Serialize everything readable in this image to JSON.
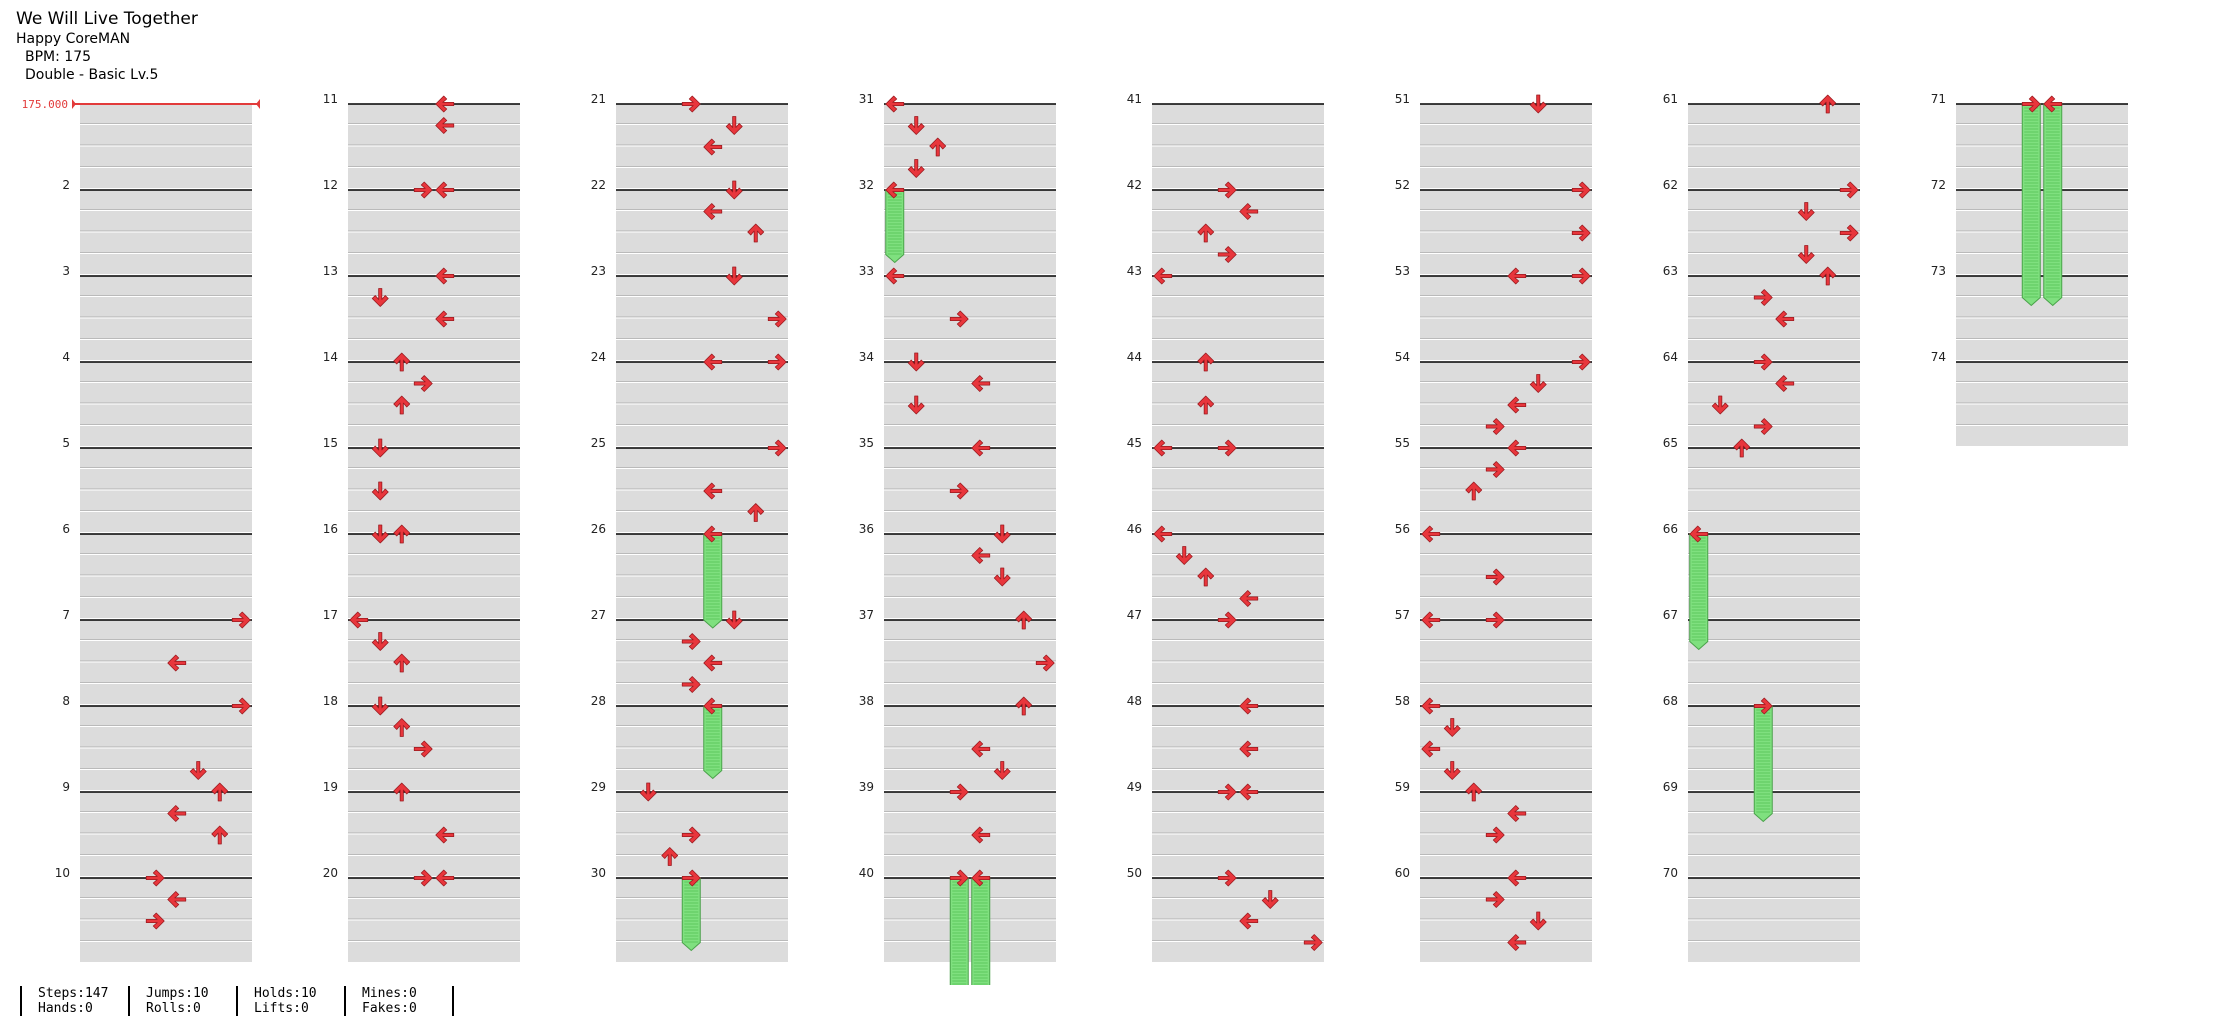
{
  "song": {
    "title": "We Will Live Together",
    "artist": "Happy CoreMAN",
    "bpm_label": "BPM: 175",
    "difficulty": "Double - Basic Lv.5",
    "initial_bpm_marker": "175.000"
  },
  "stats": [
    {
      "top": "Steps:147",
      "bottom": "Hands:0"
    },
    {
      "top": "Jumps:10",
      "bottom": "Rolls:0"
    },
    {
      "top": "Holds:10",
      "bottom": "Lifts:0"
    },
    {
      "top": "Mines:0",
      "bottom": "Fakes:0"
    }
  ],
  "arrow_directions": [
    "left",
    "down",
    "up",
    "right",
    "left",
    "down",
    "up",
    "right"
  ],
  "colors": {
    "arrow": "#e8363c",
    "hold": "#7fe07f",
    "lane_fill": "#dcdcdc",
    "bpm_marker": "#e23b3b"
  },
  "chart_data": {
    "type": "table",
    "description_fields": [
      "measure",
      "beat",
      "lane"
    ],
    "measure_count": 74,
    "lanes": 8,
    "beats_per_measure": 4,
    "notes": [
      [
        7,
        0,
        7
      ],
      [
        7,
        2,
        4
      ],
      [
        8,
        0,
        7
      ],
      [
        8,
        3,
        5
      ],
      [
        9,
        0,
        6
      ],
      [
        9,
        1,
        4
      ],
      [
        9,
        2,
        6
      ],
      [
        10,
        0,
        3
      ],
      [
        10,
        1,
        4
      ],
      [
        10,
        2,
        3
      ],
      [
        11,
        0,
        4
      ],
      [
        11,
        1,
        4
      ],
      [
        12,
        0,
        3
      ],
      [
        12,
        0,
        4
      ],
      [
        13,
        0,
        4
      ],
      [
        13,
        1,
        1
      ],
      [
        13,
        2,
        4
      ],
      [
        14,
        0,
        2
      ],
      [
        14,
        1,
        3
      ],
      [
        14,
        2,
        2
      ],
      [
        15,
        0,
        1
      ],
      [
        15,
        2,
        1
      ],
      [
        16,
        0,
        1
      ],
      [
        16,
        0,
        2
      ],
      [
        17,
        0,
        0
      ],
      [
        17,
        1,
        1
      ],
      [
        17,
        2,
        2
      ],
      [
        18,
        0,
        1
      ],
      [
        18,
        1,
        2
      ],
      [
        18,
        2,
        3
      ],
      [
        19,
        0,
        2
      ],
      [
        19,
        2,
        4
      ],
      [
        20,
        0,
        3
      ],
      [
        20,
        0,
        4
      ],
      [
        21,
        0,
        3
      ],
      [
        21,
        1,
        5
      ],
      [
        21,
        2,
        4
      ],
      [
        22,
        0,
        5
      ],
      [
        22,
        1,
        4
      ],
      [
        22,
        2,
        6
      ],
      [
        23,
        0,
        5
      ],
      [
        23,
        2,
        7
      ],
      [
        24,
        0,
        4
      ],
      [
        24,
        0,
        7
      ],
      [
        25,
        0,
        7
      ],
      [
        25,
        2,
        4
      ],
      [
        25,
        3,
        6
      ],
      [
        26,
        0,
        4
      ],
      [
        27,
        0,
        5
      ],
      [
        27,
        1,
        3
      ],
      [
        27,
        2,
        4
      ],
      [
        27,
        3,
        3
      ],
      [
        28,
        0,
        4
      ],
      [
        29,
        0,
        1
      ],
      [
        29,
        2,
        3
      ],
      [
        29,
        3,
        2
      ],
      [
        30,
        0,
        3
      ],
      [
        31,
        0,
        0
      ],
      [
        31,
        1,
        1
      ],
      [
        31,
        2,
        2
      ],
      [
        31,
        3,
        1
      ],
      [
        32,
        0,
        0
      ],
      [
        33,
        0,
        0
      ],
      [
        33,
        2,
        3
      ],
      [
        34,
        0,
        1
      ],
      [
        34,
        1,
        4
      ],
      [
        34,
        2,
        1
      ],
      [
        35,
        0,
        4
      ],
      [
        35,
        2,
        3
      ],
      [
        36,
        0,
        5
      ],
      [
        36,
        1,
        4
      ],
      [
        36,
        2,
        5
      ],
      [
        37,
        0,
        6
      ],
      [
        37,
        2,
        7
      ],
      [
        38,
        0,
        6
      ],
      [
        38,
        3,
        5
      ],
      [
        38,
        2,
        4
      ],
      [
        39,
        0,
        3
      ],
      [
        39,
        2,
        4
      ],
      [
        40,
        0,
        3
      ],
      [
        40,
        0,
        4
      ],
      [
        42,
        0,
        3
      ],
      [
        42,
        1,
        4
      ],
      [
        42,
        2,
        2
      ],
      [
        42,
        3,
        3
      ],
      [
        43,
        0,
        0
      ],
      [
        44,
        0,
        2
      ],
      [
        44,
        2,
        2
      ],
      [
        45,
        0,
        0
      ],
      [
        45,
        0,
        3
      ],
      [
        46,
        0,
        0
      ],
      [
        46,
        1,
        1
      ],
      [
        46,
        2,
        2
      ],
      [
        46,
        3,
        4
      ],
      [
        47,
        0,
        3
      ],
      [
        48,
        0,
        4
      ],
      [
        48,
        2,
        4
      ],
      [
        49,
        0,
        3
      ],
      [
        49,
        0,
        4
      ],
      [
        50,
        0,
        3
      ],
      [
        50,
        1,
        5
      ],
      [
        50,
        2,
        4
      ],
      [
        50,
        3,
        7
      ],
      [
        51,
        0,
        5
      ],
      [
        52,
        0,
        7
      ],
      [
        52,
        2,
        7
      ],
      [
        53,
        0,
        4
      ],
      [
        53,
        0,
        7
      ],
      [
        54,
        0,
        7
      ],
      [
        54,
        1,
        5
      ],
      [
        54,
        2,
        4
      ],
      [
        54,
        3,
        3
      ],
      [
        55,
        0,
        4
      ],
      [
        55,
        1,
        3
      ],
      [
        55,
        2,
        2
      ],
      [
        56,
        0,
        0
      ],
      [
        56,
        2,
        3
      ],
      [
        57,
        0,
        0
      ],
      [
        57,
        0,
        3
      ],
      [
        58,
        0,
        0
      ],
      [
        58,
        1,
        1
      ],
      [
        58,
        2,
        0
      ],
      [
        58,
        3,
        1
      ],
      [
        59,
        0,
        2
      ],
      [
        59,
        1,
        4
      ],
      [
        59,
        2,
        3
      ],
      [
        60,
        0,
        4
      ],
      [
        60,
        1,
        3
      ],
      [
        60,
        2,
        5
      ],
      [
        60,
        3,
        4
      ],
      [
        61,
        0,
        6
      ],
      [
        62,
        0,
        7
      ],
      [
        62,
        1,
        5
      ],
      [
        62,
        2,
        7
      ],
      [
        62,
        3,
        5
      ],
      [
        63,
        0,
        6
      ],
      [
        63,
        1,
        3
      ],
      [
        63,
        2,
        4
      ],
      [
        64,
        0,
        3
      ],
      [
        64,
        1,
        4
      ],
      [
        64,
        2,
        1
      ],
      [
        64,
        3,
        3
      ],
      [
        65,
        0,
        2
      ],
      [
        66,
        0,
        0
      ],
      [
        68,
        0,
        3
      ],
      [
        71,
        0,
        3
      ],
      [
        71,
        0,
        4
      ]
    ],
    "holds": [
      [
        26,
        0,
        4,
        4
      ],
      [
        28,
        0,
        4,
        3
      ],
      [
        30,
        0,
        3,
        3
      ],
      [
        32,
        0,
        0,
        3
      ],
      [
        40,
        0,
        3,
        5
      ],
      [
        40,
        0,
        4,
        5
      ],
      [
        66,
        0,
        0,
        5
      ],
      [
        68,
        0,
        3,
        5
      ],
      [
        71,
        0,
        3,
        9
      ],
      [
        71,
        0,
        4,
        9
      ]
    ]
  }
}
